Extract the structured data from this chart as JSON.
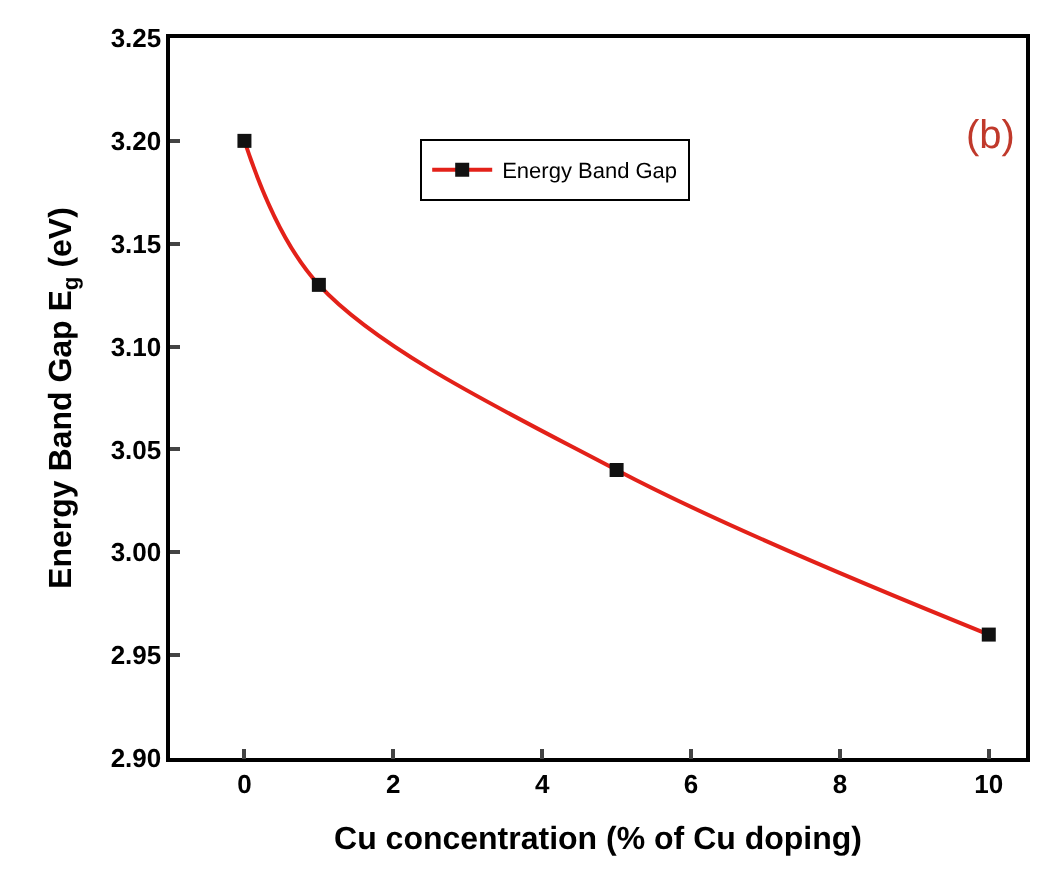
{
  "chart_data": {
    "type": "line",
    "xlabel": "Cu concentration (% of Cu doping)",
    "ylabel": "Energy Band Gap E$_{g}$ (eV)",
    "x": [
      0,
      1,
      5,
      10
    ],
    "series": [
      {
        "name": "Energy Band Gap",
        "color": "#e32119",
        "values": [
          3.2,
          3.13,
          3.04,
          2.96
        ]
      }
    ],
    "xlim": [
      -1,
      10.5
    ],
    "xticks": [
      0,
      2,
      4,
      6,
      8,
      10
    ],
    "ylim": [
      2.9,
      3.25
    ],
    "yticks": [
      {
        "value": 3.25,
        "label": "3.25"
      },
      {
        "value": 3.2,
        "label": "3.20"
      },
      {
        "value": 3.15,
        "label": "3.15"
      },
      {
        "value": 3.1,
        "label": "3.10"
      },
      {
        "value": 3.05,
        "label": "3.05"
      },
      {
        "value": 3.0,
        "label": "3.00"
      },
      {
        "value": 2.95,
        "label": "2.95"
      },
      {
        "value": 2.9,
        "label": "2.90"
      }
    ],
    "marker": "square",
    "legend": "top center",
    "annotations": [
      "(b)"
    ]
  }
}
